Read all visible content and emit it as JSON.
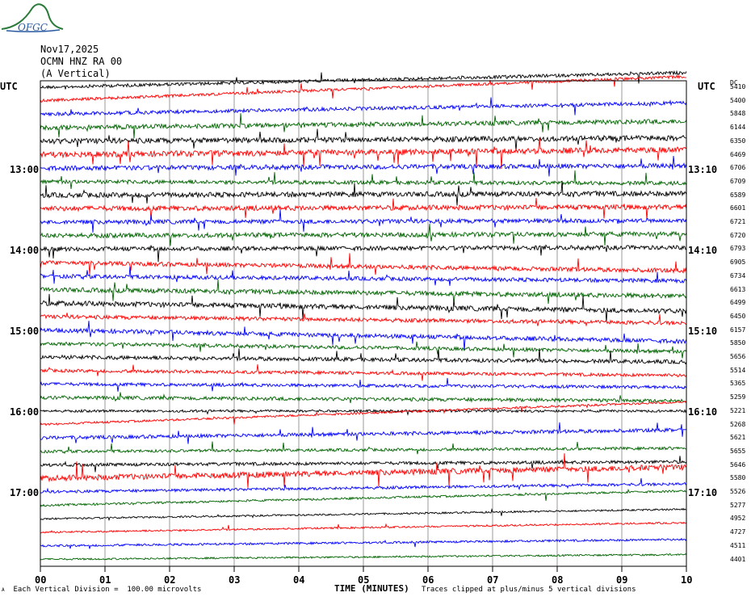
{
  "logo_text": "OFGC",
  "header": {
    "date": "Nov17,2025",
    "station": "OCMN HNZ RA 00",
    "component": "(A Vertical)"
  },
  "left_axis_label": "UTC",
  "right_axis_label": "UTC",
  "right_col_label": "DC",
  "left_time_labels": [
    "13:00",
    "14:00",
    "15:00",
    "16:00",
    "17:00"
  ],
  "right_time_labels": [
    "13:10",
    "14:10",
    "15:10",
    "16:10",
    "17:10"
  ],
  "x_ticks": [
    "00",
    "01",
    "02",
    "03",
    "04",
    "05",
    "06",
    "07",
    "08",
    "09",
    "10"
  ],
  "x_label": "TIME (MINUTES)",
  "footer_left": "Each Vertical Division =  100.00 microvolts",
  "footer_right": "Traces clipped at plus/minus 5 vertical divisions",
  "colors": {
    "black": "#000000",
    "red": "#ff0000",
    "blue": "#0000ff",
    "green": "#006400",
    "grid": "#808080"
  },
  "chart_data": {
    "type": "line",
    "title": "OCMN HNZ RA 00 (A Vertical)",
    "xlabel": "TIME (MINUTES)",
    "xlim": [
      0,
      10
    ],
    "trace_minutes": 10,
    "color_cycle": [
      "black",
      "red",
      "blue",
      "green"
    ],
    "traces": [
      {
        "dc": "5410",
        "amp": 0.9,
        "drift": 0.0,
        "bursts": 0.2
      },
      {
        "dc": "5400",
        "amp": 0.8,
        "drift": 0.0,
        "bursts": 0.3
      },
      {
        "dc": "5848",
        "amp": 1.0,
        "drift": 0.0,
        "bursts": 0.3
      },
      {
        "dc": "6144",
        "amp": 1.3,
        "drift": 0.0,
        "bursts": 0.4
      },
      {
        "dc": "6350",
        "amp": 1.5,
        "drift": 0.0,
        "bursts": 0.5
      },
      {
        "dc": "6469",
        "amp": 1.6,
        "drift": 0.0,
        "bursts": 0.6
      },
      {
        "dc": "6706",
        "amp": 1.3,
        "drift": 0.0,
        "bursts": 0.4
      },
      {
        "dc": "6709",
        "amp": 1.1,
        "drift": 0.0,
        "bursts": 0.3
      },
      {
        "dc": "6589",
        "amp": 1.4,
        "drift": 0.0,
        "bursts": 0.5
      },
      {
        "dc": "6601",
        "amp": 1.4,
        "drift": 0.0,
        "bursts": 0.5
      },
      {
        "dc": "6721",
        "amp": 1.2,
        "drift": 0.0,
        "bursts": 0.6
      },
      {
        "dc": "6720",
        "amp": 1.3,
        "drift": 0.0,
        "bursts": 0.5
      },
      {
        "dc": "6793",
        "amp": 1.2,
        "drift": 0.0,
        "bursts": 0.5
      },
      {
        "dc": "6905",
        "amp": 1.2,
        "drift": 0.0,
        "bursts": 0.5
      },
      {
        "dc": "6734",
        "amp": 1.1,
        "drift": 0.0,
        "bursts": 0.5
      },
      {
        "dc": "6613",
        "amp": 1.3,
        "drift": 0.0,
        "bursts": 0.5
      },
      {
        "dc": "6499",
        "amp": 1.4,
        "drift": 0.0,
        "bursts": 0.5
      },
      {
        "dc": "6450",
        "amp": 1.1,
        "drift": 0.0,
        "bursts": 0.4
      },
      {
        "dc": "6157",
        "amp": 1.2,
        "drift": 0.0,
        "bursts": 0.4
      },
      {
        "dc": "5850",
        "amp": 1.0,
        "drift": 0.0,
        "bursts": 0.3
      },
      {
        "dc": "5656",
        "amp": 1.1,
        "drift": 0.0,
        "bursts": 0.3
      },
      {
        "dc": "5514",
        "amp": 0.9,
        "drift": 0.0,
        "bursts": 0.3
      },
      {
        "dc": "5365",
        "amp": 0.9,
        "drift": 0.0,
        "bursts": 0.3
      },
      {
        "dc": "5259",
        "amp": 1.0,
        "drift": 0.0,
        "bursts": 0.3
      },
      {
        "dc": "5221",
        "amp": 0.7,
        "drift": 0.0,
        "bursts": 0.2
      },
      {
        "dc": "5268",
        "amp": 0.6,
        "drift": 0.0,
        "bursts": 0.2
      },
      {
        "dc": "5621",
        "amp": 1.0,
        "drift": 0.0,
        "bursts": 0.4
      },
      {
        "dc": "5655",
        "amp": 0.8,
        "drift": 0.0,
        "bursts": 0.3
      },
      {
        "dc": "5646",
        "amp": 0.9,
        "drift": 0.0,
        "bursts": 0.3
      },
      {
        "dc": "5580",
        "amp": 1.6,
        "drift": 0.0,
        "bursts": 0.8
      },
      {
        "dc": "5526",
        "amp": 0.8,
        "drift": 0.0,
        "bursts": 0.3
      },
      {
        "dc": "5277",
        "amp": 0.6,
        "drift": 0.0,
        "bursts": 0.2
      },
      {
        "dc": "4952",
        "amp": 0.5,
        "drift": 0.0,
        "bursts": 0.1
      },
      {
        "dc": "4727",
        "amp": 0.5,
        "drift": 0.0,
        "bursts": 0.1
      },
      {
        "dc": "4511",
        "amp": 0.6,
        "drift": 0.0,
        "bursts": 0.2
      },
      {
        "dc": "4401",
        "amp": 0.5,
        "drift": 0.0,
        "bursts": 0.1
      }
    ]
  }
}
